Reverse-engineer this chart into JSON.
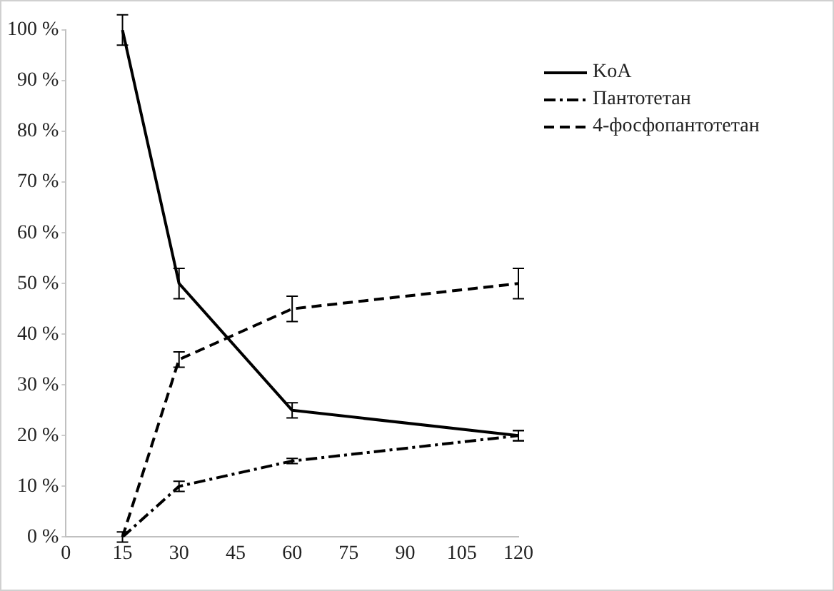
{
  "chart_data": {
    "type": "line",
    "x": [
      15,
      30,
      60,
      120
    ],
    "series": [
      {
        "name": "KoA",
        "color": "#000000",
        "line_style": "solid",
        "values": [
          100,
          50,
          25,
          20
        ],
        "errors": [
          3,
          3,
          1.5,
          1
        ]
      },
      {
        "name": "Пантотетан",
        "color": "#000000",
        "line_style": "dashdot",
        "values": [
          0,
          10,
          15,
          20
        ],
        "errors": [
          1,
          1,
          0.5,
          1
        ]
      },
      {
        "name": "4-фосфопантотетан",
        "color": "#000000",
        "line_style": "dashed",
        "values": [
          0,
          35,
          45,
          50
        ],
        "errors": [
          null,
          1.5,
          2.5,
          3
        ]
      }
    ],
    "xlim": [
      0,
      120
    ],
    "xticks": [
      0,
      15,
      30,
      45,
      60,
      75,
      90,
      105,
      120
    ],
    "ylim": [
      0,
      100
    ],
    "yticks": [
      {
        "value": 0,
        "label": "0 %"
      },
      {
        "value": 10,
        "label": "10 %"
      },
      {
        "value": 20,
        "label": "20 %"
      },
      {
        "value": 30,
        "label": "30 %"
      },
      {
        "value": 40,
        "label": "40 %"
      },
      {
        "value": 50,
        "label": "50 %"
      },
      {
        "value": 60,
        "label": "60 %"
      },
      {
        "value": 70,
        "label": "70 %"
      },
      {
        "value": 80,
        "label": "80 %"
      },
      {
        "value": 90,
        "label": "90 %"
      },
      {
        "value": 100,
        "label": "100 %"
      }
    ],
    "grid": false,
    "legend": "top right"
  }
}
